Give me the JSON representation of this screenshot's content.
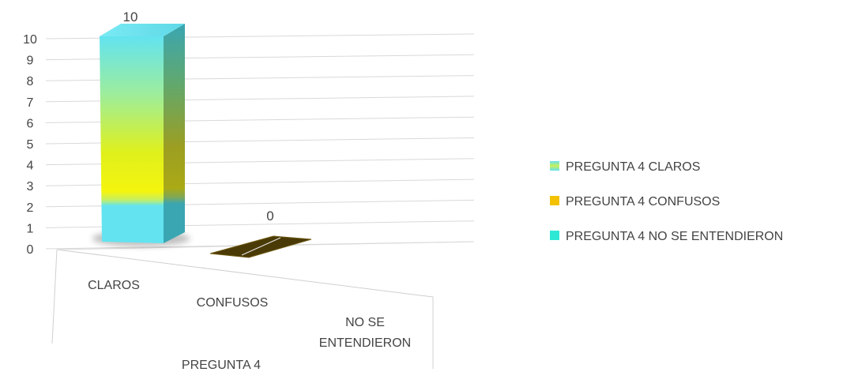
{
  "chart_data": {
    "type": "bar",
    "style": "3d-perspective",
    "title": "",
    "xlabel": "PREGUNTA 4",
    "ylabel": "",
    "ylim": [
      0,
      10
    ],
    "yticks": [
      "0",
      "1",
      "2",
      "3",
      "4",
      "5",
      "6",
      "7",
      "8",
      "9",
      "10"
    ],
    "categories": [
      "CLAROS",
      "CONFUSOS",
      "NO SE ENTENDIERON"
    ],
    "category_labels": [
      [
        "CLAROS"
      ],
      [
        "CONFUSOS"
      ],
      [
        "NO SE",
        "ENTENDIERON"
      ]
    ],
    "series": [
      {
        "name": "PREGUNTA 4 CLAROS",
        "values": [
          10,
          null,
          null
        ],
        "data_labels": [
          "10",
          null,
          null
        ],
        "color": "#63e3f0"
      },
      {
        "name": "PREGUNTA 4 CONFUSOS",
        "values": [
          null,
          0,
          null
        ],
        "data_labels": [
          null,
          "0",
          null
        ],
        "color": "#f2c200"
      },
      {
        "name": "PREGUNTA 4 NO SE ENTENDIERON",
        "values": [
          null,
          null,
          null
        ],
        "data_labels": [
          null,
          null,
          null
        ],
        "color": "#2ee8d6"
      }
    ],
    "legend_position": "right",
    "gridlines": true
  }
}
